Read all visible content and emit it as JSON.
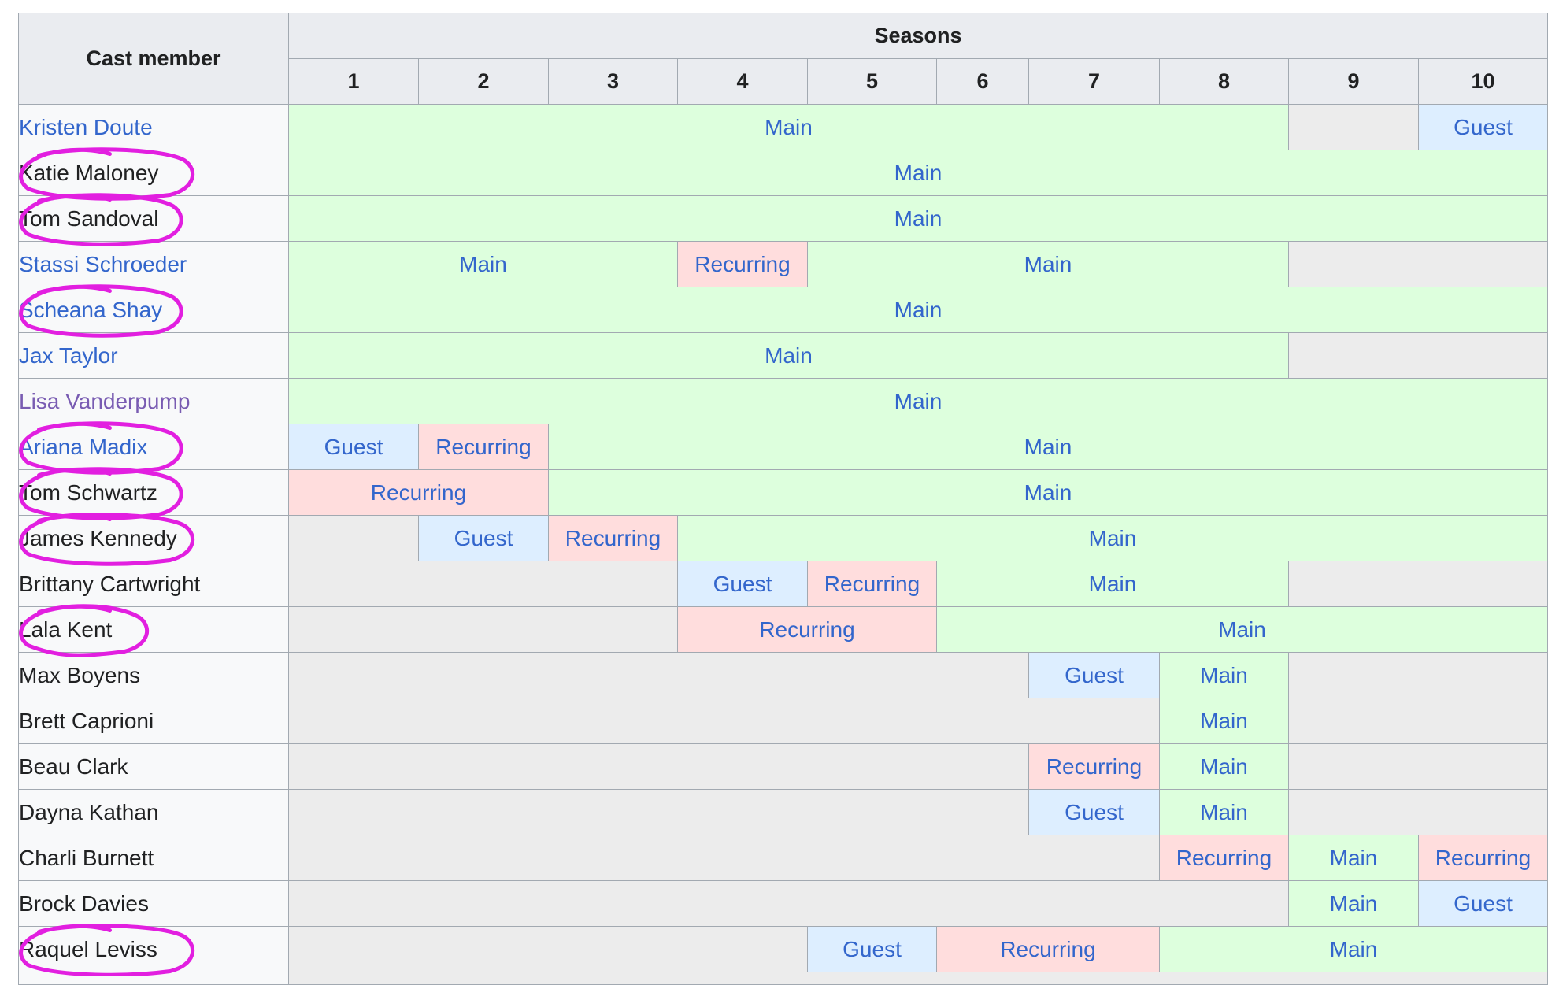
{
  "header": {
    "cast_member": "Cast member",
    "seasons": "Seasons",
    "season_numbers": [
      "1",
      "2",
      "3",
      "4",
      "5",
      "6",
      "7",
      "8",
      "9",
      "10"
    ]
  },
  "colors": {
    "main": "#ddffdd",
    "recurring": "#ffdddd",
    "guest": "#ddeeff",
    "none": "#ececec",
    "link": "#3366cc",
    "visited_link": "#795cb2",
    "annotation": "#e21fe0"
  },
  "rows": [
    {
      "name": "Kristen Doute",
      "name_style": "link",
      "circled": false,
      "segments": [
        {
          "status": "Main",
          "span": 8
        },
        {
          "status": "",
          "span": 1
        },
        {
          "status": "Guest",
          "span": 1
        }
      ]
    },
    {
      "name": "Katie Maloney",
      "name_style": "plain",
      "circled": true,
      "segments": [
        {
          "status": "Main",
          "span": 10
        }
      ]
    },
    {
      "name": "Tom Sandoval",
      "name_style": "plain",
      "circled": true,
      "segments": [
        {
          "status": "Main",
          "span": 10
        }
      ]
    },
    {
      "name": "Stassi Schroeder",
      "name_style": "link",
      "circled": false,
      "segments": [
        {
          "status": "Main",
          "span": 3
        },
        {
          "status": "Recurring",
          "span": 1
        },
        {
          "status": "Main",
          "span": 4
        },
        {
          "status": "",
          "span": 2
        }
      ]
    },
    {
      "name": "Scheana Shay",
      "name_style": "link",
      "circled": true,
      "segments": [
        {
          "status": "Main",
          "span": 10
        }
      ]
    },
    {
      "name": "Jax Taylor",
      "name_style": "link",
      "circled": false,
      "segments": [
        {
          "status": "Main",
          "span": 8
        },
        {
          "status": "",
          "span": 2
        }
      ]
    },
    {
      "name": "Lisa Vanderpump",
      "name_style": "visited",
      "circled": false,
      "segments": [
        {
          "status": "Main",
          "span": 10
        }
      ]
    },
    {
      "name": "Ariana Madix",
      "name_style": "link",
      "circled": true,
      "segments": [
        {
          "status": "Guest",
          "span": 1
        },
        {
          "status": "Recurring",
          "span": 1
        },
        {
          "status": "Main",
          "span": 8
        }
      ]
    },
    {
      "name": "Tom Schwartz",
      "name_style": "plain",
      "circled": true,
      "segments": [
        {
          "status": "Recurring",
          "span": 2
        },
        {
          "status": "Main",
          "span": 8
        }
      ]
    },
    {
      "name": "James Kennedy",
      "name_style": "plain",
      "circled": true,
      "segments": [
        {
          "status": "",
          "span": 1
        },
        {
          "status": "Guest",
          "span": 1
        },
        {
          "status": "Recurring",
          "span": 1
        },
        {
          "status": "Main",
          "span": 7
        }
      ]
    },
    {
      "name": "Brittany Cartwright",
      "name_style": "plain",
      "circled": false,
      "segments": [
        {
          "status": "",
          "span": 3
        },
        {
          "status": "Guest",
          "span": 1
        },
        {
          "status": "Recurring",
          "span": 1
        },
        {
          "status": "Main",
          "span": 3
        },
        {
          "status": "",
          "span": 2
        }
      ]
    },
    {
      "name": "Lala Kent",
      "name_style": "plain",
      "circled": true,
      "segments": [
        {
          "status": "",
          "span": 3
        },
        {
          "status": "Recurring",
          "span": 2
        },
        {
          "status": "Main",
          "span": 5
        }
      ]
    },
    {
      "name": "Max Boyens",
      "name_style": "plain",
      "circled": false,
      "segments": [
        {
          "status": "",
          "span": 6
        },
        {
          "status": "Guest",
          "span": 1
        },
        {
          "status": "Main",
          "span": 1
        },
        {
          "status": "",
          "span": 2
        }
      ]
    },
    {
      "name": "Brett Caprioni",
      "name_style": "plain",
      "circled": false,
      "segments": [
        {
          "status": "",
          "span": 7
        },
        {
          "status": "Main",
          "span": 1
        },
        {
          "status": "",
          "span": 2
        }
      ]
    },
    {
      "name": "Beau Clark",
      "name_style": "plain",
      "circled": false,
      "segments": [
        {
          "status": "",
          "span": 6
        },
        {
          "status": "Recurring",
          "span": 1
        },
        {
          "status": "Main",
          "span": 1
        },
        {
          "status": "",
          "span": 2
        }
      ]
    },
    {
      "name": "Dayna Kathan",
      "name_style": "plain",
      "circled": false,
      "segments": [
        {
          "status": "",
          "span": 6
        },
        {
          "status": "Guest",
          "span": 1
        },
        {
          "status": "Main",
          "span": 1
        },
        {
          "status": "",
          "span": 2
        }
      ]
    },
    {
      "name": "Charli Burnett",
      "name_style": "plain",
      "circled": false,
      "segments": [
        {
          "status": "",
          "span": 7
        },
        {
          "status": "Recurring",
          "span": 1
        },
        {
          "status": "Main",
          "span": 1
        },
        {
          "status": "Recurring",
          "span": 1
        }
      ]
    },
    {
      "name": "Brock Davies",
      "name_style": "plain",
      "circled": false,
      "segments": [
        {
          "status": "",
          "span": 8
        },
        {
          "status": "Main",
          "span": 1
        },
        {
          "status": "Guest",
          "span": 1
        }
      ]
    },
    {
      "name": "Raquel Leviss",
      "name_style": "plain",
      "circled": true,
      "segments": [
        {
          "status": "",
          "span": 4
        },
        {
          "status": "Guest",
          "span": 1
        },
        {
          "status": "Recurring",
          "span": 2
        },
        {
          "status": "Main",
          "span": 3
        }
      ]
    },
    {
      "name": "",
      "name_style": "plain",
      "circled": false,
      "segments": [
        {
          "status": "",
          "span": 10
        }
      ]
    }
  ]
}
